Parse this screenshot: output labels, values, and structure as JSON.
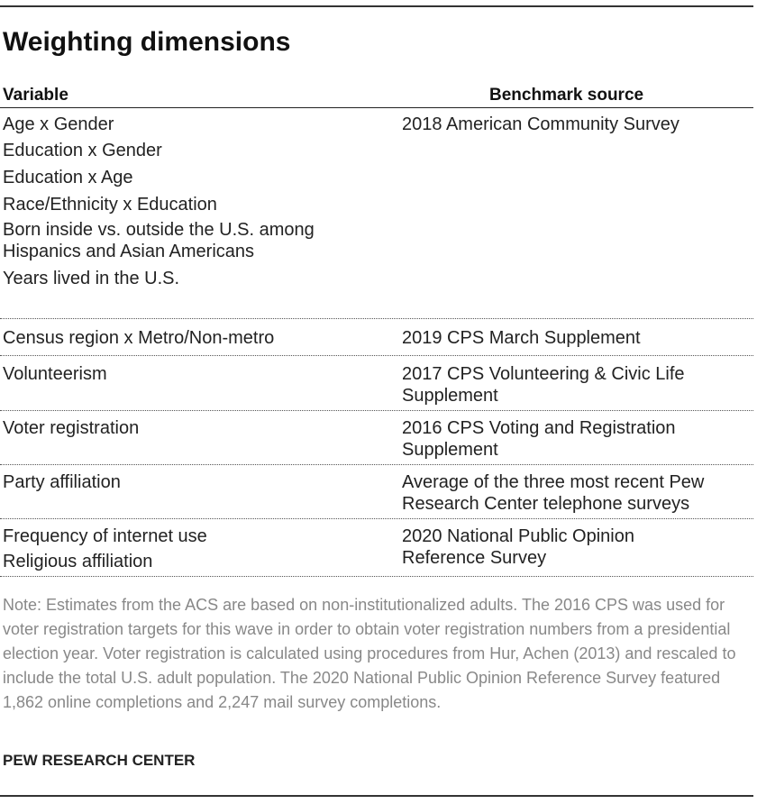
{
  "title": "Weighting dimensions",
  "table": {
    "headers": {
      "variable": "Variable",
      "source": "Benchmark source"
    },
    "groups": [
      {
        "variables": [
          "Age x Gender",
          "Education x Gender",
          "Education x Age",
          "Race/Ethnicity x Education",
          "Born inside vs. outside the U.S. among",
          "Hispanics and Asian Americans",
          "Years lived in the U.S."
        ],
        "source": [
          "2018 American Community Survey"
        ]
      },
      {
        "variables": [
          "Census region x Metro/Non-metro"
        ],
        "source": [
          "2019 CPS March Supplement"
        ]
      },
      {
        "variables": [
          "Volunteerism"
        ],
        "source": [
          "2017 CPS Volunteering & Civic Life",
          "Supplement"
        ]
      },
      {
        "variables": [
          "Voter registration"
        ],
        "source": [
          "2016 CPS Voting and Registration",
          "Supplement"
        ]
      },
      {
        "variables": [
          "Party affiliation"
        ],
        "source": [
          "Average of the three most recent Pew",
          "Research Center telephone surveys"
        ]
      },
      {
        "variables": [
          "Frequency of internet use",
          "Religious affiliation"
        ],
        "source": [
          "2020 National Public Opinion",
          "Reference Survey"
        ]
      }
    ]
  },
  "note": "Note: Estimates from the ACS are based on non-institutionalized adults. The 2016 CPS was used for voter registration targets for this wave in order to obtain voter registration numbers from a presidential election year. Voter registration is calculated using procedures from Hur, Achen (2013) and rescaled to include the total U.S. adult population. The 2020 National Public Opinion Reference Survey featured 1,862 online completions and 2,247 mail survey completions.",
  "source_credit": "PEW RESEARCH CENTER"
}
